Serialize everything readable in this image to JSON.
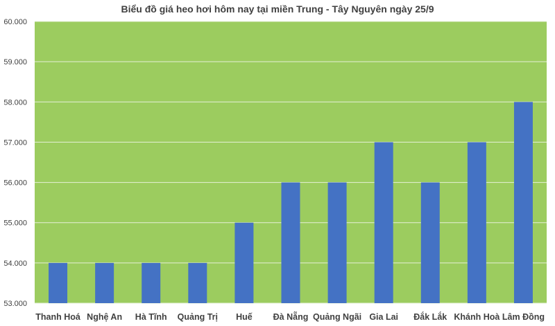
{
  "chart_data": {
    "type": "bar",
    "title": "Biểu đồ giá heo hơi hôm nay tại miền Trung - Tây Nguyên ngày 25/9",
    "categories": [
      "Thanh Hoá",
      "Nghệ An",
      "Hà Tĩnh",
      "Quảng Trị",
      "Huế",
      "Đà Nẵng",
      "Quảng Ngãi",
      "Gia Lai",
      "Đắk Lắk",
      "Khánh Hoà",
      "Lâm Đồng"
    ],
    "values": [
      54000,
      54000,
      54000,
      54000,
      55000,
      56000,
      56000,
      57000,
      56000,
      57000,
      58000
    ],
    "ylim": [
      53000,
      60000
    ],
    "yticks": [
      "53.000",
      "54.000",
      "55.000",
      "56.000",
      "57.000",
      "58.000",
      "59.000",
      "60.000"
    ],
    "xlabel": "",
    "ylabel": "",
    "grid": true,
    "colors": {
      "bar": "#4472c4",
      "plot_background": "#9ccc5f",
      "grid": "#e6f0d8"
    }
  }
}
